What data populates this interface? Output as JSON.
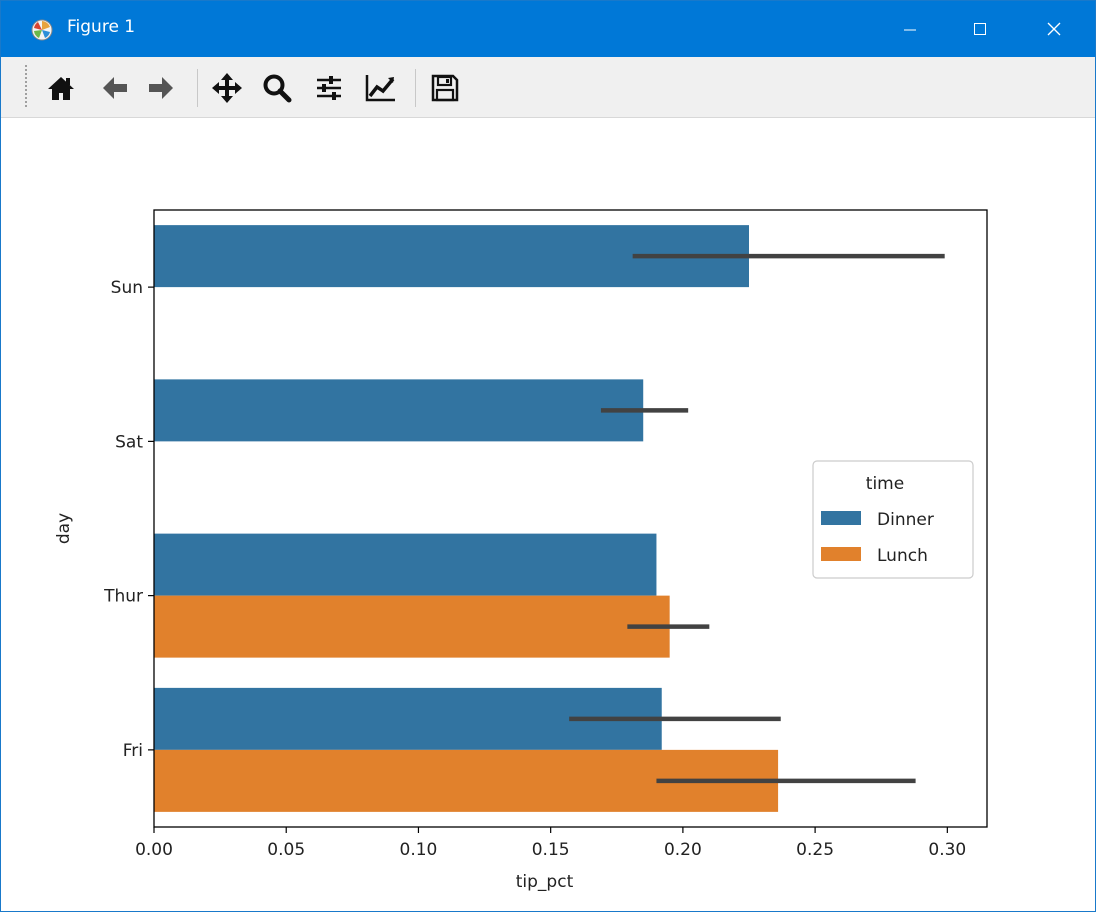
{
  "window": {
    "title": "Figure 1",
    "controls": [
      "minimize",
      "maximize",
      "close"
    ]
  },
  "toolbar": {
    "buttons": [
      {
        "name": "home-icon"
      },
      {
        "name": "back-arrow-icon"
      },
      {
        "name": "forward-arrow-icon"
      },
      {
        "name": "pan-icon"
      },
      {
        "name": "zoom-icon"
      },
      {
        "name": "subplots-config-icon"
      },
      {
        "name": "edit-axis-icon"
      },
      {
        "name": "save-icon"
      }
    ]
  },
  "chart_data": {
    "type": "bar",
    "orientation": "horizontal",
    "categories": [
      "Sun",
      "Sat",
      "Thur",
      "Fri"
    ],
    "series": [
      {
        "name": "Dinner",
        "color": "#3274a1",
        "values": [
          0.225,
          0.185,
          0.19,
          0.192
        ],
        "errors": [
          [
            0.181,
            0.299
          ],
          [
            0.169,
            0.202
          ],
          null,
          [
            0.157,
            0.237
          ]
        ]
      },
      {
        "name": "Lunch",
        "color": "#e1812c",
        "values": [
          null,
          null,
          0.195,
          0.236
        ],
        "errors": [
          null,
          null,
          [
            0.179,
            0.21
          ],
          [
            0.19,
            0.288
          ]
        ]
      }
    ],
    "xlabel": "tip_pct",
    "ylabel": "day",
    "xlim": [
      0,
      0.315
    ],
    "xticks": [
      "0.00",
      "0.05",
      "0.10",
      "0.15",
      "0.20",
      "0.25",
      "0.30"
    ],
    "legend": {
      "title": "time",
      "placement": "center-right"
    },
    "grid": false
  }
}
